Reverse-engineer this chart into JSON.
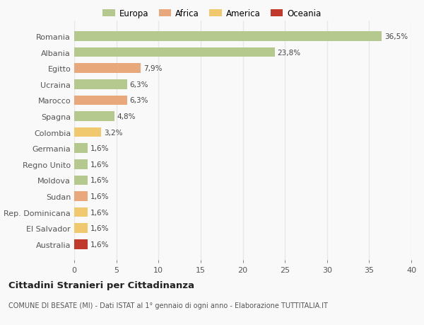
{
  "categories": [
    "Romania",
    "Albania",
    "Egitto",
    "Ucraina",
    "Marocco",
    "Spagna",
    "Colombia",
    "Germania",
    "Regno Unito",
    "Moldova",
    "Sudan",
    "Rep. Dominicana",
    "El Salvador",
    "Australia"
  ],
  "values": [
    36.5,
    23.8,
    7.9,
    6.3,
    6.3,
    4.8,
    3.2,
    1.6,
    1.6,
    1.6,
    1.6,
    1.6,
    1.6,
    1.6
  ],
  "labels": [
    "36,5%",
    "23,8%",
    "7,9%",
    "6,3%",
    "6,3%",
    "4,8%",
    "3,2%",
    "1,6%",
    "1,6%",
    "1,6%",
    "1,6%",
    "1,6%",
    "1,6%",
    "1,6%"
  ],
  "colors": [
    "#b5c98e",
    "#b5c98e",
    "#e8a87c",
    "#b5c98e",
    "#e8a87c",
    "#b5c98e",
    "#f0c96e",
    "#b5c98e",
    "#b5c98e",
    "#b5c98e",
    "#e8a87c",
    "#f0c96e",
    "#f0c96e",
    "#c0392b"
  ],
  "legend_labels": [
    "Europa",
    "Africa",
    "America",
    "Oceania"
  ],
  "legend_colors": [
    "#b5c98e",
    "#e8a87c",
    "#f0c96e",
    "#c0392b"
  ],
  "title": "Cittadini Stranieri per Cittadinanza",
  "subtitle": "COMUNE DI BESATE (MI) - Dati ISTAT al 1° gennaio di ogni anno - Elaborazione TUTTITALIA.IT",
  "xlim": [
    0,
    40
  ],
  "xticks": [
    0,
    5,
    10,
    15,
    20,
    25,
    30,
    35,
    40
  ],
  "background_color": "#f9f9f9",
  "grid_color": "#e8e8e8",
  "bar_height": 0.6
}
